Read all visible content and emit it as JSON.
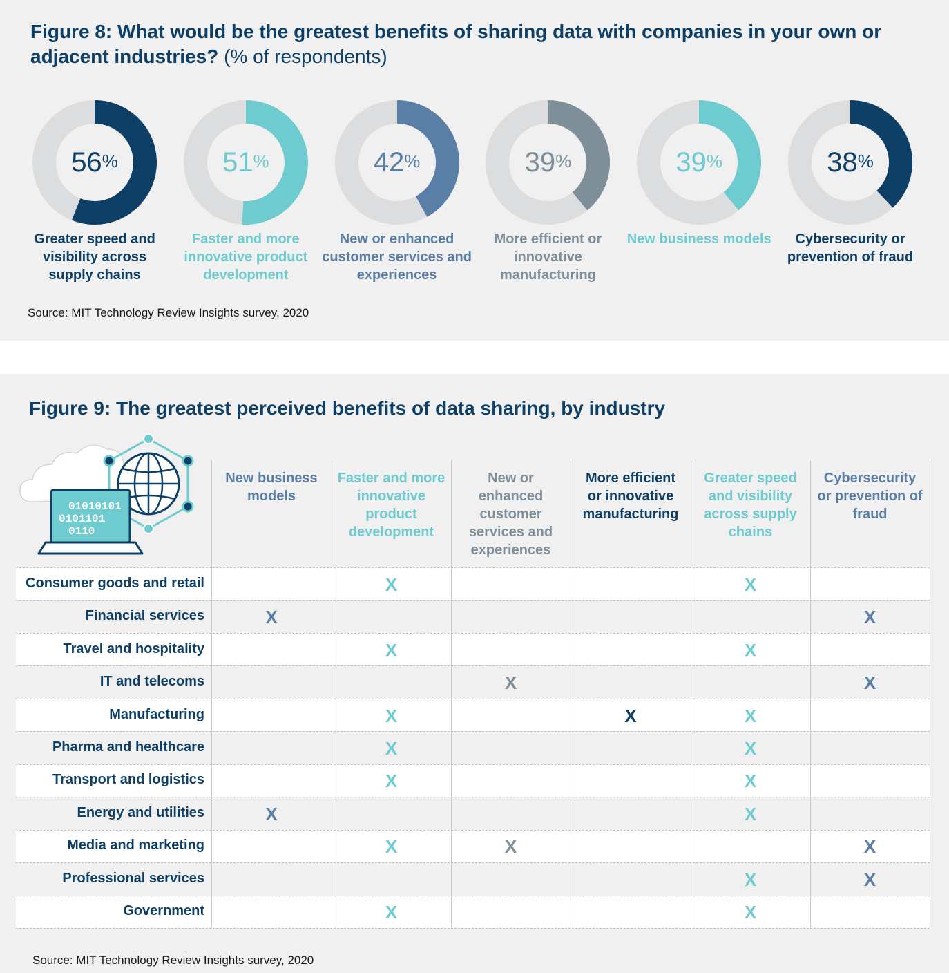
{
  "colors": {
    "navy": "#0e3f66",
    "teal": "#6ecbcf",
    "blue": "#5a7fa6",
    "slate": "#7e8f99",
    "track": "#dcdddf",
    "title": "#0e3f66"
  },
  "figure8": {
    "title_bold": "Figure 8: What would be the greatest benefits of sharing data with companies in your own or adjacent industries?",
    "title_suffix": "(% of respondents)",
    "source": "Source: MIT Technology Review Insights survey, 2020"
  },
  "figure9": {
    "title": "Figure 9: The greatest perceived benefits of data sharing, by industry",
    "source": "Source: MIT Technology Review Insights survey, 2020",
    "illustration": {
      "binary_lines": [
        "01010101",
        "0101101",
        "0110"
      ],
      "icons": [
        "cloud-icon",
        "laptop-icon",
        "globe-network-icon"
      ]
    }
  },
  "chart_data": [
    {
      "type": "pie",
      "subtype": "donut",
      "title": "Figure 8: What would be the greatest benefits of sharing data with companies in your own or adjacent industries? (% of respondents)",
      "unit": "%",
      "categories": [
        "Greater speed and visibility across supply chains",
        "Faster and more innovative product development",
        "New or enhanced customer services and experiences",
        "More efficient or innovative manufacturing",
        "New business models",
        "Cybersecurity or prevention of fraud"
      ],
      "values": [
        56,
        51,
        42,
        39,
        39,
        38
      ],
      "value_labels": [
        "56",
        "51",
        "42",
        "39",
        "39",
        "38"
      ],
      "percent_sign": "%",
      "colors": [
        "#0e3f66",
        "#6ecbcf",
        "#5a7fa6",
        "#7e8f99",
        "#6ecbcf",
        "#0e3f66"
      ]
    },
    {
      "type": "table",
      "title": "Figure 9: The greatest perceived benefits of data sharing, by industry",
      "columns": [
        {
          "label": "New business models",
          "color": "#5a7fa6"
        },
        {
          "label": "Faster and more innovative product development",
          "color": "#6ecbcf"
        },
        {
          "label": "New or enhanced customer services and experiences",
          "color": "#7e8f99"
        },
        {
          "label": "More efficient or innovative manufacturing",
          "color": "#0e3f66"
        },
        {
          "label": "Greater speed and visibility across supply chains",
          "color": "#6ecbcf"
        },
        {
          "label": "Cybersecurity or prevention of fraud",
          "color": "#5a7fa6"
        }
      ],
      "mark_symbol": "X",
      "rows": [
        {
          "label": "Consumer goods and retail",
          "marks": [
            1,
            4
          ]
        },
        {
          "label": "Financial services",
          "marks": [
            0,
            5
          ]
        },
        {
          "label": "Travel and hospitality",
          "marks": [
            1,
            4
          ]
        },
        {
          "label": "IT and telecoms",
          "marks": [
            2,
            5
          ]
        },
        {
          "label": "Manufacturing",
          "marks": [
            1,
            3,
            4
          ]
        },
        {
          "label": "Pharma and healthcare",
          "marks": [
            1,
            4
          ]
        },
        {
          "label": "Transport and logistics",
          "marks": [
            1,
            4
          ]
        },
        {
          "label": "Energy and utilities",
          "marks": [
            0,
            4
          ]
        },
        {
          "label": "Media and marketing",
          "marks": [
            1,
            2,
            5
          ]
        },
        {
          "label": "Professional services",
          "marks": [
            4,
            5
          ]
        },
        {
          "label": "Government",
          "marks": [
            1,
            4
          ]
        }
      ]
    }
  ]
}
